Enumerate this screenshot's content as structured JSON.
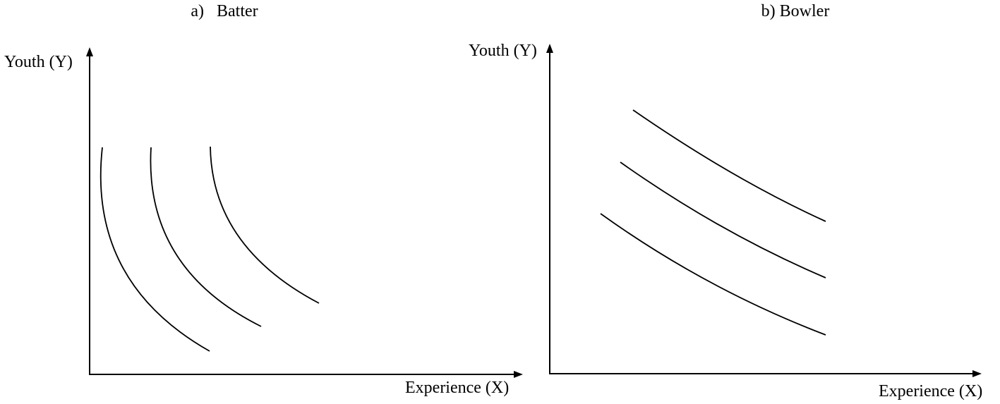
{
  "panels": [
    {
      "title": "a)   Batter",
      "y_label": "Youth (Y)",
      "x_label": "Experience (X)"
    },
    {
      "title": "b) Bowler",
      "y_label": "Youth (Y)",
      "x_label": "Experience (X)"
    }
  ]
}
